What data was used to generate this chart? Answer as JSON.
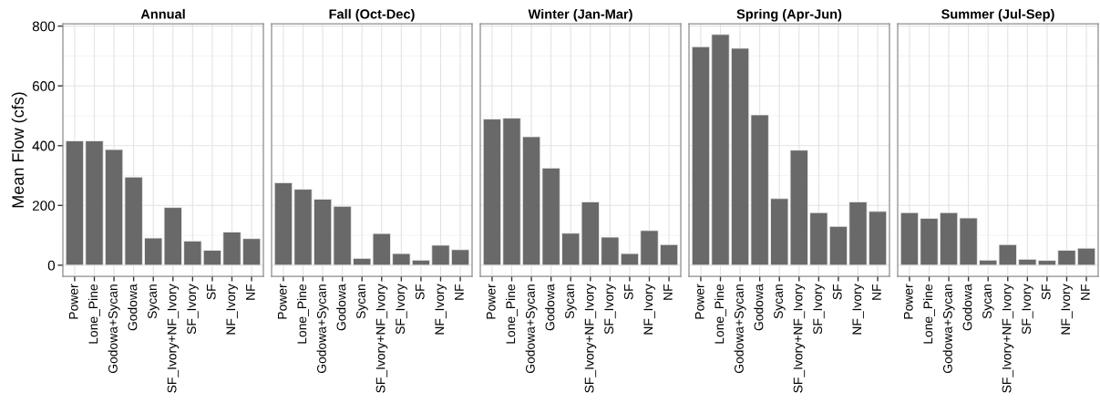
{
  "chart_data": [
    {
      "type": "bar",
      "title": "Annual",
      "ylabel": "Mean Flow (cfs)",
      "categories": [
        "Power",
        "Lone_Pine",
        "Godowa+Sycan",
        "Godowa",
        "Sycan",
        "SF_Ivory+NF_Ivory",
        "SF_Ivory",
        "SF",
        "NF_Ivory",
        "NF"
      ],
      "values": [
        416,
        416,
        387,
        295,
        91,
        193,
        81,
        50,
        111,
        89
      ],
      "color": "#696969",
      "ylim": [
        -37,
        808
      ],
      "yticks": [
        0,
        200,
        400,
        600,
        800
      ],
      "grid": true
    },
    {
      "type": "bar",
      "title": "Fall (Oct-Dec)",
      "categories": [
        "Power",
        "Lone_Pine",
        "Godowa+Sycan",
        "Godowa",
        "Sycan",
        "SF_Ivory+NF_Ivory",
        "SF_Ivory",
        "SF",
        "NF_Ivory",
        "NF"
      ],
      "values": [
        276,
        254,
        221,
        197,
        23,
        106,
        39,
        17,
        67,
        52
      ],
      "color": "#696969",
      "ylim": [
        -37,
        808
      ],
      "yticks": [
        0,
        200,
        400,
        600,
        800
      ],
      "grid": true,
      "tick_labels": "x"
    },
    {
      "type": "bar",
      "title": "Winter (Jan-Mar)",
      "categories": [
        "Power",
        "Lone_Pine",
        "Godowa+Sycan",
        "Godowa",
        "Sycan",
        "SF_Ivory+NF_Ivory",
        "SF_Ivory",
        "SF",
        "NF_Ivory",
        "NF"
      ],
      "values": [
        489,
        492,
        430,
        325,
        107,
        212,
        94,
        39,
        116,
        69
      ],
      "color": "#696969",
      "ylim": [
        -37,
        808
      ],
      "yticks": [
        0,
        200,
        400,
        600,
        800
      ],
      "grid": true,
      "tick_labels": "x"
    },
    {
      "type": "bar",
      "title": "Spring (Apr-Jun)",
      "categories": [
        "Power",
        "Lone_Pine",
        "Godowa+Sycan",
        "Godowa",
        "Sycan",
        "SF_Ivory+NF_Ivory",
        "SF_Ivory",
        "SF",
        "NF_Ivory",
        "NF"
      ],
      "values": [
        731,
        772,
        726,
        503,
        223,
        385,
        176,
        130,
        212,
        180
      ],
      "color": "#696969",
      "ylim": [
        -37,
        808
      ],
      "yticks": [
        0,
        200,
        400,
        600,
        800
      ],
      "grid": true,
      "tick_labels": "x"
    },
    {
      "type": "bar",
      "title": "Summer (Jul-Sep)",
      "categories": [
        "Power",
        "Lone_Pine",
        "Godowa+Sycan",
        "Godowa",
        "Sycan",
        "SF_Ivory+NF_Ivory",
        "SF_Ivory",
        "SF",
        "NF_Ivory",
        "NF"
      ],
      "values": [
        176,
        157,
        176,
        158,
        17,
        69,
        20,
        16,
        50,
        57
      ],
      "color": "#696969",
      "ylim": [
        -37,
        808
      ],
      "yticks": [
        0,
        200,
        400,
        600,
        800
      ],
      "grid": true,
      "tick_labels": "x"
    }
  ]
}
